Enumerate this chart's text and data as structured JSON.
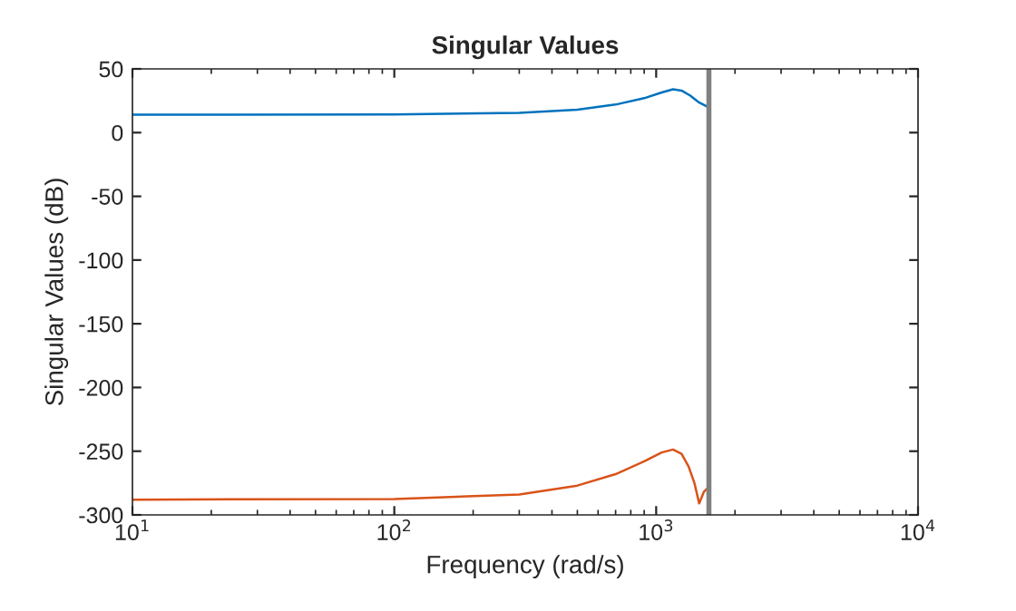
{
  "chart_data": {
    "type": "line",
    "title": "Singular Values",
    "xlabel": "Frequency (rad/s)",
    "ylabel": "Singular Values (dB)",
    "log": "x",
    "xlim": [
      10,
      10000
    ],
    "ylim": [
      -300,
      50
    ],
    "xticks": [
      {
        "value": 10,
        "label": "10$^{1}$"
      },
      {
        "value": 100,
        "label": "10$^{2}$"
      },
      {
        "value": 1000,
        "label": "10$^{3}$"
      },
      {
        "value": 10000,
        "label": "10$^{4}$"
      }
    ],
    "yticks": [
      -300,
      -250,
      -200,
      -150,
      -100,
      -50,
      0,
      50
    ],
    "grid": false,
    "legend": false,
    "line_style": "solid",
    "marker": "none",
    "series": [
      {
        "color": "#0072bd",
        "x": [
          10,
          100,
          300,
          500,
          700,
          900,
          1050,
          1160,
          1250,
          1350,
          1450,
          1590
        ],
        "values": [
          14,
          14.3,
          15.5,
          18,
          22,
          27,
          31.5,
          34,
          33,
          29,
          24,
          19.7
        ]
      },
      {
        "color": "#d95319",
        "x": [
          10,
          100,
          300,
          500,
          700,
          900,
          1050,
          1160,
          1250,
          1330,
          1400,
          1460,
          1520,
          1590
        ],
        "values": [
          -288,
          -287.5,
          -284,
          -277,
          -268,
          -258,
          -251,
          -248.7,
          -252,
          -262,
          -275,
          -291,
          -282,
          -278
        ]
      }
    ],
    "ref_lines": [
      {
        "axis": "x",
        "value": 1590,
        "color": "#808080",
        "line_style": "solid"
      }
    ]
  }
}
